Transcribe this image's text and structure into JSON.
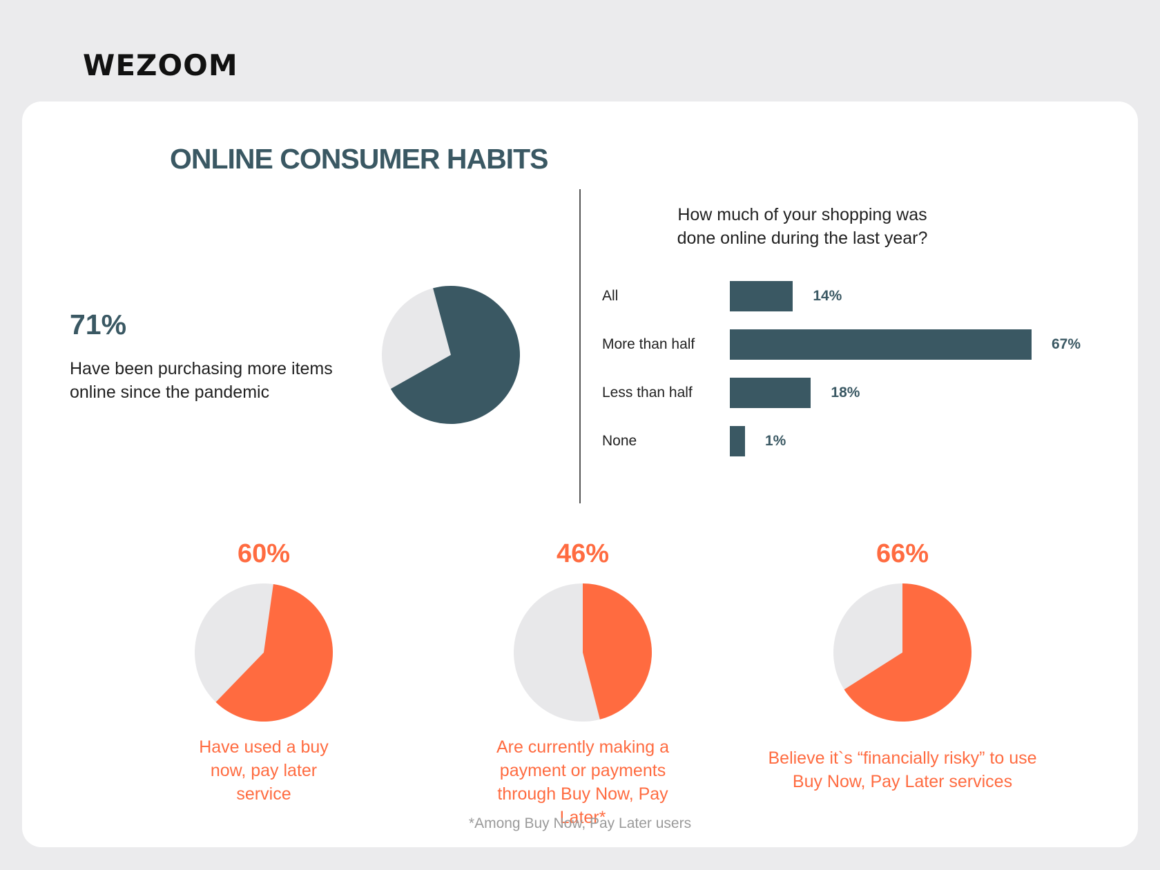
{
  "brand": {
    "logo_text": "WEZOOM"
  },
  "title": "ONLINE CONSUMER HABITS",
  "colors": {
    "primary": "#3a5863",
    "accent": "#ff6b40",
    "muted": "#e8e8ea"
  },
  "highlight": {
    "percent_label": "71%",
    "description": "Have been purchasing more items online since the pandemic"
  },
  "bar_question": "How much of your shopping was done online during the last year?",
  "bnpl": [
    {
      "percent_label": "60%",
      "description": "Have used a buy now, pay later service"
    },
    {
      "percent_label": "46%",
      "description": "Are currently making a payment or payments through Buy Now, Pay Later*"
    },
    {
      "percent_label": "66%",
      "description": "Believe it`s “financially risky” to use Buy Now, Pay Later services"
    }
  ],
  "footnote": "*Among Buy Now, Pay Later users",
  "chart_data": [
    {
      "type": "pie",
      "values": [
        71,
        29
      ]
    },
    {
      "type": "bar",
      "orientation": "horizontal",
      "title": "How much of your shopping was done online during the last year?",
      "categories": [
        "All",
        "More than half",
        "Less than half",
        "None"
      ],
      "values": [
        14,
        67,
        18,
        1
      ],
      "value_labels": [
        "14%",
        "67%",
        "18%",
        "1%"
      ]
    },
    {
      "type": "pie",
      "values": [
        60,
        40
      ]
    },
    {
      "type": "pie",
      "values": [
        46,
        54
      ]
    },
    {
      "type": "pie",
      "values": [
        66,
        34
      ]
    }
  ]
}
